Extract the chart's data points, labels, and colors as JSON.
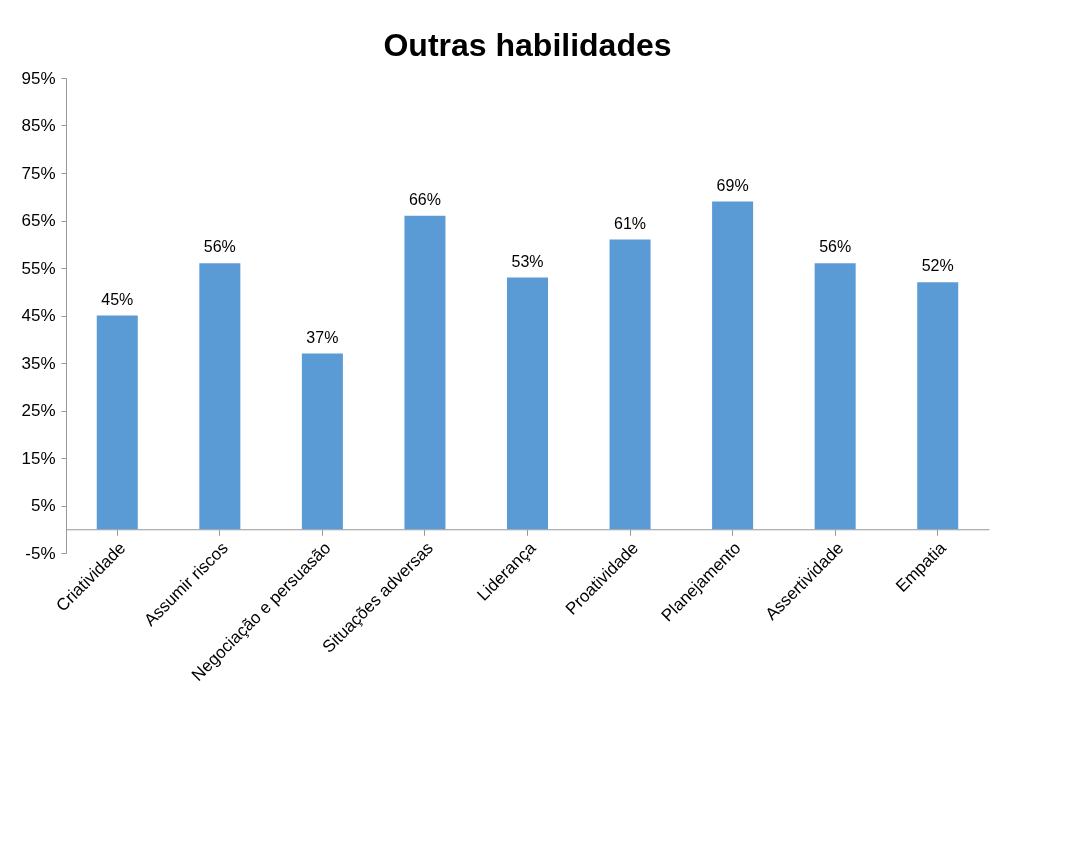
{
  "chart_data": {
    "type": "bar",
    "title": "Outras habilidades",
    "categories": [
      "Criatividade",
      "Assumir riscos",
      "Negociação e persuasão",
      "Situações adversas",
      "Liderança",
      "Proatividade",
      "Planejamento",
      "Assertividade",
      "Empatia"
    ],
    "values": [
      45,
      56,
      37,
      66,
      53,
      61,
      69,
      56,
      52
    ],
    "value_labels": [
      "45%",
      "56%",
      "37%",
      "66%",
      "53%",
      "61%",
      "69%",
      "56%",
      "52%"
    ],
    "color": "#5b9bd5",
    "ylim": [
      -5,
      95
    ],
    "yticks": [
      {
        "value": -5,
        "label": "-5%"
      },
      {
        "value": 5,
        "label": "5%"
      },
      {
        "value": 15,
        "label": "15%"
      },
      {
        "value": 25,
        "label": "25%"
      },
      {
        "value": 35,
        "label": "35%"
      },
      {
        "value": 45,
        "label": "45%"
      },
      {
        "value": 55,
        "label": "55%"
      },
      {
        "value": 65,
        "label": "65%"
      },
      {
        "value": 75,
        "label": "75%"
      },
      {
        "value": 85,
        "label": "85%"
      },
      {
        "value": 95,
        "label": "95%"
      }
    ]
  }
}
